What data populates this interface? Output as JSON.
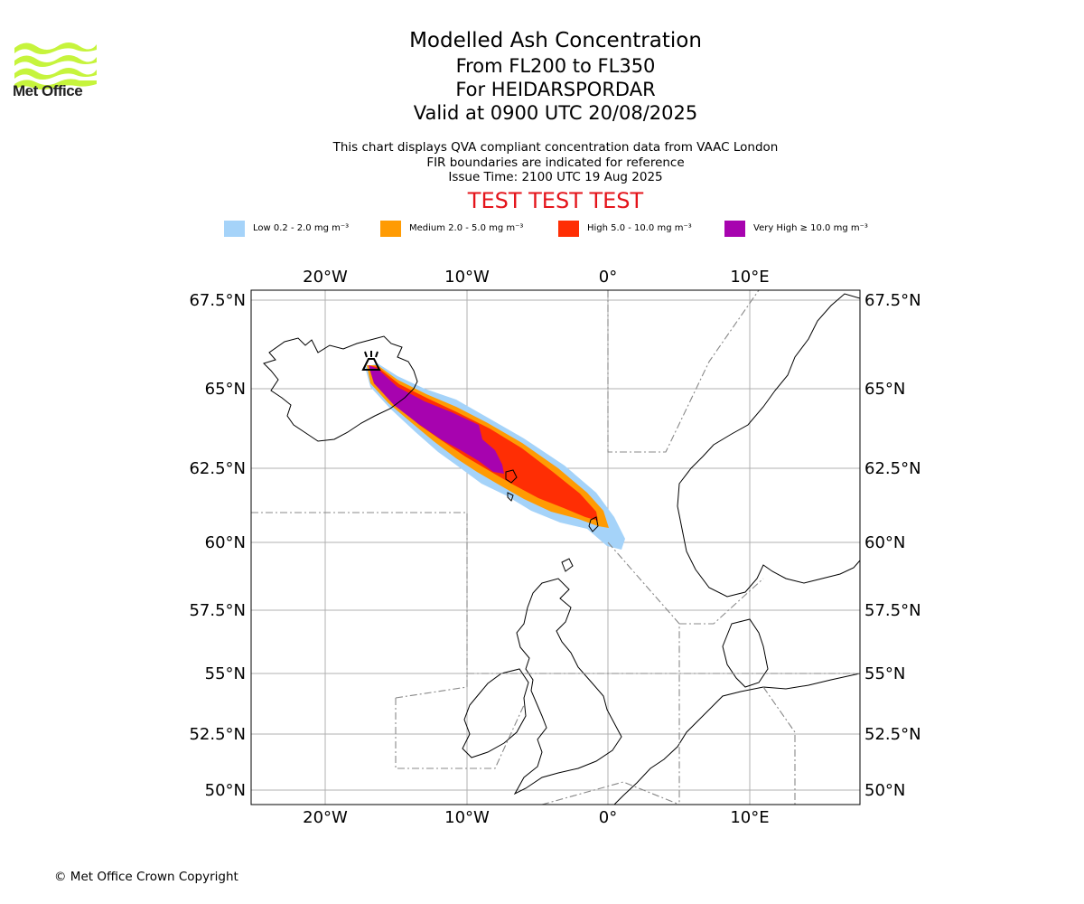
{
  "header": {
    "logo_text": "Met Office",
    "title": "Modelled Ash Concentration",
    "flight_levels": "From FL200 to FL350",
    "volcano": "For HEIDARSPORDAR",
    "valid_time": "Valid at 0900 UTC 20/08/2025",
    "note_line1": "This chart displays QVA compliant concentration data from VAAC London",
    "note_line2": "FIR boundaries are indicated for reference",
    "issue_time": "Issue Time: 2100 UTC 19 Aug 2025",
    "test_banner": "TEST TEST TEST"
  },
  "legend": [
    {
      "label": "Low 0.2 - 2.0 mg m⁻³",
      "color": "#a5d3f9"
    },
    {
      "label": "Medium 2.0 - 5.0 mg m⁻³",
      "color": "#ff9b03"
    },
    {
      "label": "High 5.0 - 10.0 mg m⁻³",
      "color": "#ff2e04"
    },
    {
      "label": "Very High  ≥  10.0 mg m⁻³",
      "color": "#a703af"
    }
  ],
  "map": {
    "lon_range": [
      -25,
      18
    ],
    "lat_range": [
      49.5,
      67.8
    ],
    "lon_ticks": [
      "20°W",
      "10°W",
      "0°",
      "10°E"
    ],
    "lat_ticks": [
      "67.5°N",
      "65°N",
      "62.5°N",
      "60°N",
      "57.5°N",
      "55°N",
      "52.5°N",
      "50°N"
    ],
    "volcano_symbol": "volcano-icon"
  },
  "footer": {
    "copyright": "© Met Office Crown Copyright"
  }
}
